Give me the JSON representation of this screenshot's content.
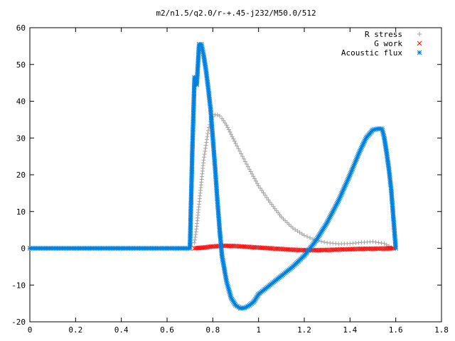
{
  "chart_data": {
    "type": "scatter",
    "title": "m2/n1.5/q2.0/r-+.45-j232/M50.0/512",
    "xlabel": "",
    "ylabel": "",
    "xlim": [
      0,
      1.8
    ],
    "ylim": [
      -20,
      60
    ],
    "x_ticks": [
      "0",
      "0.2",
      "0.4",
      "0.6",
      "0.8",
      "1",
      "1.2",
      "1.4",
      "1.6",
      "1.8"
    ],
    "y_ticks": [
      "-20",
      "-10",
      "0",
      "10",
      "20",
      "30",
      "40",
      "50",
      "60"
    ],
    "grid": false,
    "legend_position": "top-right",
    "series": [
      {
        "name": "R stress",
        "marker": "+",
        "color": "#a0a0a0",
        "x": [
          0.72,
          0.73,
          0.74,
          0.75,
          0.76,
          0.77,
          0.78,
          0.79,
          0.8,
          0.81,
          0.82,
          0.83,
          0.84,
          0.86,
          0.88,
          0.9,
          0.93,
          0.96,
          1.0,
          1.05,
          1.1,
          1.15,
          1.2,
          1.25,
          1.3,
          1.35,
          1.4,
          1.45,
          1.5,
          1.55,
          1.58
        ],
        "y": [
          1.5,
          6,
          12,
          18,
          24,
          28,
          32,
          34.5,
          35.8,
          36.3,
          36.3,
          36,
          35.3,
          33.5,
          31,
          28.5,
          25,
          21.5,
          17,
          12.5,
          8.5,
          5.5,
          3.5,
          2.2,
          1.5,
          1.2,
          1.3,
          1.6,
          1.8,
          1.3,
          0.2
        ]
      },
      {
        "name": "G work",
        "marker": "x",
        "color": "#ff0000",
        "x": [
          0.72,
          0.76,
          0.8,
          0.85,
          0.9,
          0.95,
          1.0,
          1.05,
          1.1,
          1.15,
          1.2,
          1.25,
          1.3,
          1.35,
          1.4,
          1.45,
          1.5,
          1.55,
          1.59
        ],
        "y": [
          0,
          0.2,
          0.5,
          0.7,
          0.6,
          0.4,
          0.2,
          0,
          -0.2,
          -0.4,
          -0.5,
          -0.5,
          -0.45,
          -0.35,
          -0.25,
          -0.15,
          -0.1,
          -0.05,
          0
        ]
      },
      {
        "name": "Acoustic flux",
        "marker": "*",
        "color": "#0080e0",
        "x": [
          0.0,
          0.05,
          0.1,
          0.15,
          0.2,
          0.25,
          0.3,
          0.35,
          0.4,
          0.45,
          0.5,
          0.55,
          0.6,
          0.65,
          0.7,
          0.71,
          0.72,
          0.73,
          0.74,
          0.75,
          0.76,
          0.77,
          0.78,
          0.79,
          0.8,
          0.81,
          0.82,
          0.83,
          0.84,
          0.86,
          0.88,
          0.9,
          0.92,
          0.94,
          0.96,
          0.98,
          1.0,
          1.05,
          1.1,
          1.15,
          1.2,
          1.25,
          1.3,
          1.35,
          1.4,
          1.44,
          1.47,
          1.5,
          1.52,
          1.54,
          1.55,
          1.56,
          1.57,
          1.58,
          1.59,
          1.6
        ],
        "y": [
          0,
          0,
          0,
          0,
          0,
          0,
          0,
          0,
          0,
          0,
          0,
          0,
          0,
          0,
          0,
          25.8,
          46.5,
          44.5,
          55.5,
          55.5,
          52.5,
          48.5,
          43.5,
          38,
          30,
          22,
          13,
          5,
          -2,
          -9,
          -13.5,
          -15.5,
          -16.3,
          -16.2,
          -15.5,
          -14.5,
          -12.5,
          -10,
          -7.5,
          -5,
          -2,
          2,
          7,
          13,
          20,
          26,
          30,
          32.2,
          32.5,
          32.5,
          30,
          26,
          21.5,
          16,
          8,
          0
        ]
      }
    ]
  }
}
